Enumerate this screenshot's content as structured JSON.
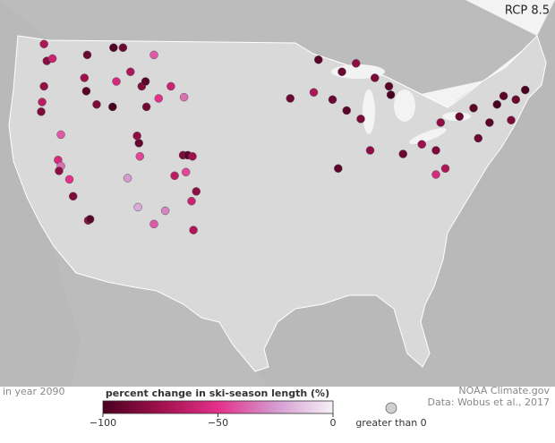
{
  "chart_data": {
    "type": "map",
    "title": "RCP 8.5",
    "subtitle": "in year 2090",
    "legend_title": "percent change in ski-season length (%)",
    "clim": [
      -100,
      0
    ],
    "cticks": [
      {
        "value": -100,
        "label": "−100"
      },
      {
        "value": -50,
        "label": "−50"
      },
      0
    ],
    "color_stops": [
      "#4a0020",
      "#a0104c",
      "#e4308a",
      "#d49ad0",
      "#f7f1f8"
    ],
    "positive_label": "greater than 0",
    "positive_color": "#cfcfcf",
    "credit": "NOAA Climate.gov",
    "source": "Data: Wobus et al., 2017",
    "sites": [
      {
        "lon": -121.4,
        "lat": 47.4,
        "value": -82
      },
      {
        "lon": -121.7,
        "lat": 48.8,
        "value": -70
      },
      {
        "lon": -120.8,
        "lat": 47.6,
        "value": -60
      },
      {
        "lon": -117.1,
        "lat": 47.9,
        "value": -90
      },
      {
        "lon": -117.4,
        "lat": 46.0,
        "value": -75
      },
      {
        "lon": -121.7,
        "lat": 45.3,
        "value": -78
      },
      {
        "lon": -121.9,
        "lat": 44.0,
        "value": -65
      },
      {
        "lon": -122.0,
        "lat": 43.2,
        "value": -85
      },
      {
        "lon": -117.2,
        "lat": 44.9,
        "value": -95
      },
      {
        "lon": -116.1,
        "lat": 43.8,
        "value": -85
      },
      {
        "lon": -114.4,
        "lat": 43.6,
        "value": -100
      },
      {
        "lon": -114.0,
        "lat": 45.7,
        "value": -55
      },
      {
        "lon": -112.5,
        "lat": 46.5,
        "value": -70
      },
      {
        "lon": -111.3,
        "lat": 45.3,
        "value": -85
      },
      {
        "lon": -110.9,
        "lat": 45.7,
        "value": -95
      },
      {
        "lon": -113.3,
        "lat": 48.5,
        "value": -90
      },
      {
        "lon": -114.3,
        "lat": 48.5,
        "value": -98
      },
      {
        "lon": -110.0,
        "lat": 47.9,
        "value": -40
      },
      {
        "lon": -108.2,
        "lat": 45.3,
        "value": -60
      },
      {
        "lon": -109.5,
        "lat": 44.3,
        "value": -50
      },
      {
        "lon": -106.8,
        "lat": 44.4,
        "value": -35
      },
      {
        "lon": -110.8,
        "lat": 43.6,
        "value": -88
      },
      {
        "lon": -111.6,
        "lat": 40.6,
        "value": -92
      },
      {
        "lon": -111.8,
        "lat": 41.2,
        "value": -80
      },
      {
        "lon": -111.5,
        "lat": 39.5,
        "value": -45
      },
      {
        "lon": -112.8,
        "lat": 37.7,
        "value": -25
      },
      {
        "lon": -106.9,
        "lat": 39.6,
        "value": -85
      },
      {
        "lon": -106.4,
        "lat": 39.6,
        "value": -95
      },
      {
        "lon": -105.9,
        "lat": 39.5,
        "value": -75
      },
      {
        "lon": -107.8,
        "lat": 37.9,
        "value": -65
      },
      {
        "lon": -106.6,
        "lat": 38.2,
        "value": -45
      },
      {
        "lon": -105.5,
        "lat": 36.6,
        "value": -80
      },
      {
        "lon": -106.0,
        "lat": 35.8,
        "value": -60
      },
      {
        "lon": -108.8,
        "lat": 35.0,
        "value": -30
      },
      {
        "lon": -111.7,
        "lat": 35.3,
        "value": -20
      },
      {
        "lon": -110.0,
        "lat": 33.9,
        "value": -40
      },
      {
        "lon": -105.8,
        "lat": 33.4,
        "value": -70
      },
      {
        "lon": -120.2,
        "lat": 39.2,
        "value": -55
      },
      {
        "lon": -119.9,
        "lat": 38.7,
        "value": -35
      },
      {
        "lon": -120.1,
        "lat": 38.3,
        "value": -80
      },
      {
        "lon": -119.0,
        "lat": 37.6,
        "value": -50
      },
      {
        "lon": -118.6,
        "lat": 36.2,
        "value": -85
      },
      {
        "lon": -117.0,
        "lat": 34.2,
        "value": -80
      },
      {
        "lon": -116.8,
        "lat": 34.3,
        "value": -95
      },
      {
        "lon": -119.9,
        "lat": 41.3,
        "value": -40
      },
      {
        "lon": -92.5,
        "lat": 47.5,
        "value": -95
      },
      {
        "lon": -90.0,
        "lat": 46.5,
        "value": -90
      },
      {
        "lon": -88.5,
        "lat": 47.2,
        "value": -80
      },
      {
        "lon": -86.5,
        "lat": 46.0,
        "value": -85
      },
      {
        "lon": -85.0,
        "lat": 45.3,
        "value": -95
      },
      {
        "lon": -84.8,
        "lat": 44.6,
        "value": -100
      },
      {
        "lon": -93.0,
        "lat": 44.8,
        "value": -70
      },
      {
        "lon": -95.5,
        "lat": 44.3,
        "value": -90
      },
      {
        "lon": -91.0,
        "lat": 44.2,
        "value": -90
      },
      {
        "lon": -89.5,
        "lat": 43.3,
        "value": -95
      },
      {
        "lon": -88.0,
        "lat": 42.6,
        "value": -85
      },
      {
        "lon": -90.4,
        "lat": 38.5,
        "value": -95
      },
      {
        "lon": -87.0,
        "lat": 40.0,
        "value": -80
      },
      {
        "lon": -83.5,
        "lat": 39.7,
        "value": -90
      },
      {
        "lon": -81.5,
        "lat": 40.5,
        "value": -75
      },
      {
        "lon": -80.0,
        "lat": 40.0,
        "value": -85
      },
      {
        "lon": -79.0,
        "lat": 38.5,
        "value": -70
      },
      {
        "lon": -80.0,
        "lat": 38.0,
        "value": -55
      },
      {
        "lon": -75.5,
        "lat": 41.0,
        "value": -90
      },
      {
        "lon": -74.3,
        "lat": 42.3,
        "value": -95
      },
      {
        "lon": -73.5,
        "lat": 43.8,
        "value": -100
      },
      {
        "lon": -72.8,
        "lat": 44.5,
        "value": -95
      },
      {
        "lon": -71.5,
        "lat": 44.2,
        "value": -90
      },
      {
        "lon": -70.5,
        "lat": 45.0,
        "value": -100
      },
      {
        "lon": -72.0,
        "lat": 42.5,
        "value": -85
      },
      {
        "lon": -77.5,
        "lat": 42.8,
        "value": -90
      },
      {
        "lon": -79.5,
        "lat": 42.3,
        "value": -80
      },
      {
        "lon": -76.0,
        "lat": 43.5,
        "value": -95
      }
    ]
  }
}
